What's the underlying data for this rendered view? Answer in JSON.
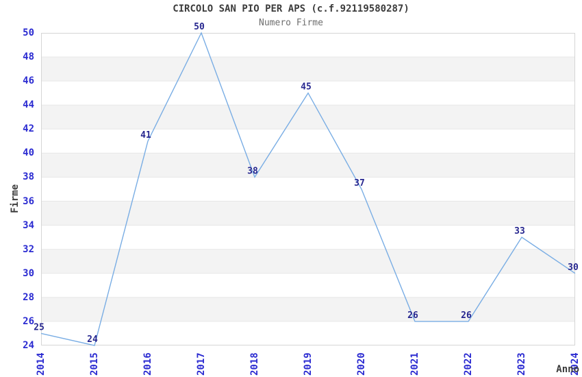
{
  "chart_data": {
    "type": "line",
    "title": "CIRCOLO SAN PIO PER APS (c.f.92119580287)",
    "subtitle": "Numero Firme",
    "xlabel": "Anno",
    "ylabel": "Firme",
    "categories": [
      "2014",
      "2015",
      "2016",
      "2017",
      "2018",
      "2019",
      "2020",
      "2021",
      "2022",
      "2023",
      "2024"
    ],
    "values": [
      25,
      24,
      41,
      50,
      38,
      45,
      37,
      26,
      26,
      33,
      30
    ],
    "point_labels": [
      "25",
      "24",
      "41",
      "50",
      "38",
      "45",
      "37",
      "26",
      "26",
      "33",
      "30"
    ],
    "ylim": [
      24,
      50
    ],
    "ytick_step": 2,
    "yticks": [
      24,
      26,
      28,
      30,
      32,
      34,
      36,
      38,
      40,
      42,
      44,
      46,
      48,
      50
    ],
    "grid": "horizontal alternating bands, no vertical gridlines",
    "legend": "none",
    "colors": {
      "line": "#79ade4",
      "axis_tick_text": "#2b2bd1",
      "point_label_text": "#26268f",
      "band_fill": "#f3f3f3",
      "grid_line": "#e7e7e7",
      "plot_border": "#d5d5d5",
      "title_text": "#3c3c3c",
      "subtitle_text": "#6e6e6e"
    }
  }
}
